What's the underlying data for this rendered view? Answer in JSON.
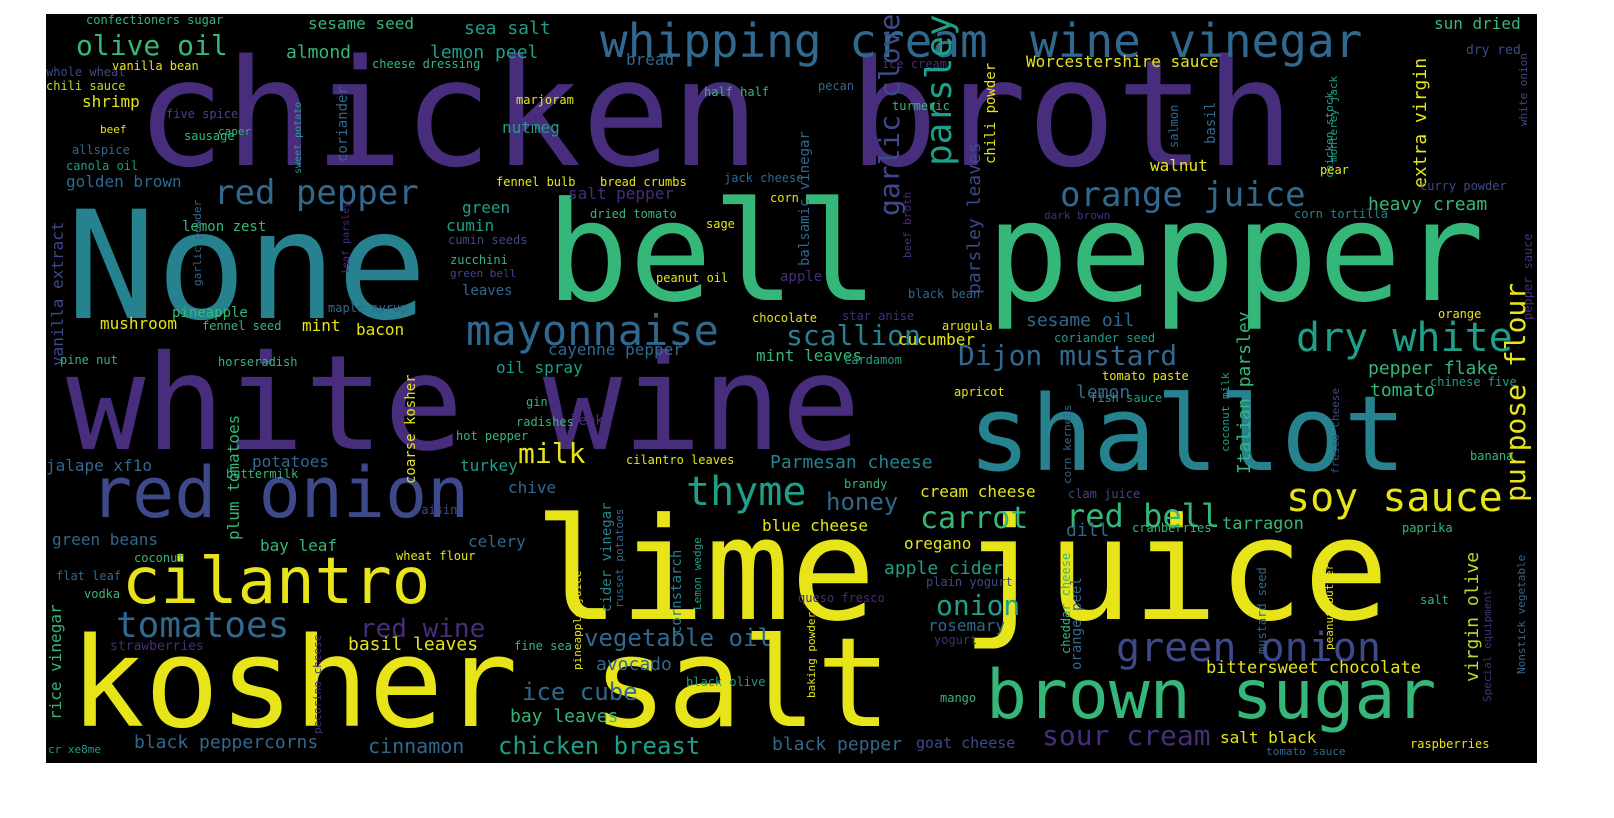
{
  "palette": {
    "yellow": "#e7e419",
    "lime": "#b5de2b",
    "green": "#35b779",
    "teal": "#1f9e89",
    "cyan": "#26828e",
    "blue": "#31688e",
    "indigo": "#3e4989",
    "purple": "#472d7b",
    "dark": "#440154"
  },
  "words": [
    {
      "text": "chicken broth",
      "color": "purple"
    },
    {
      "text": "None",
      "color": "cyan"
    },
    {
      "text": "bell",
      "color": "green"
    },
    {
      "text": "pepper",
      "color": "green"
    },
    {
      "text": "white wine",
      "color": "purple"
    },
    {
      "text": "shallot",
      "color": "cyan"
    },
    {
      "text": "lime juice",
      "color": "yellow"
    },
    {
      "text": "kosher salt",
      "color": "yellow"
    },
    {
      "text": "red onion",
      "color": "indigo"
    },
    {
      "text": "brown sugar",
      "color": "green"
    },
    {
      "text": "cilantro",
      "color": "yellow"
    },
    {
      "text": "whipping cream",
      "color": "blue"
    },
    {
      "text": "wine vinegar",
      "color": "blue"
    },
    {
      "text": "mayonnaise",
      "color": "blue"
    },
    {
      "text": "soy sauce",
      "color": "yellow"
    },
    {
      "text": "dry white",
      "color": "teal"
    },
    {
      "text": "green onion",
      "color": "indigo"
    },
    {
      "text": "thyme",
      "color": "teal"
    },
    {
      "text": "tomatoes",
      "color": "blue"
    },
    {
      "text": "orange juice",
      "color": "blue"
    },
    {
      "text": "red pepper",
      "color": "blue"
    },
    {
      "text": "olive oil",
      "color": "green"
    },
    {
      "text": "red bell",
      "color": "green"
    },
    {
      "text": "carrot",
      "color": "green"
    },
    {
      "text": "Dijon mustard",
      "color": "blue"
    },
    {
      "text": "scallion",
      "color": "cyan"
    },
    {
      "text": "parsley",
      "color": "teal"
    },
    {
      "text": "garlic clove",
      "color": "indigo"
    },
    {
      "text": "purpose flour",
      "color": "yellow"
    },
    {
      "text": "sour cream",
      "color": "purple"
    },
    {
      "text": "red wine",
      "color": "purple"
    },
    {
      "text": "vegetable oil",
      "color": "blue"
    },
    {
      "text": "honey",
      "color": "blue"
    },
    {
      "text": "milk",
      "color": "yellow"
    },
    {
      "text": "onion",
      "color": "teal"
    },
    {
      "text": "ice cube",
      "color": "blue"
    },
    {
      "text": "chicken breast",
      "color": "teal"
    },
    {
      "text": "cinnamon",
      "color": "blue"
    },
    {
      "text": "black peppercorns",
      "color": "blue"
    },
    {
      "text": "bay leaves",
      "color": "green"
    },
    {
      "text": "avocado",
      "color": "blue"
    },
    {
      "text": "basil leaves",
      "color": "yellow"
    },
    {
      "text": "Parmesan cheese",
      "color": "cyan"
    },
    {
      "text": "cream cheese",
      "color": "yellow"
    },
    {
      "text": "blue cheese",
      "color": "yellow"
    },
    {
      "text": "oregano",
      "color": "yellow"
    },
    {
      "text": "apple cider",
      "color": "teal"
    },
    {
      "text": "rosemary",
      "color": "blue"
    },
    {
      "text": "bittersweet chocolate",
      "color": "yellow"
    },
    {
      "text": "salt black",
      "color": "yellow"
    },
    {
      "text": "black pepper",
      "color": "blue"
    },
    {
      "text": "goat cheese",
      "color": "indigo"
    },
    {
      "text": "tarragon",
      "color": "green"
    },
    {
      "text": "dill",
      "color": "blue"
    },
    {
      "text": "virgin olive",
      "color": "lime"
    },
    {
      "text": "heavy cream",
      "color": "green"
    },
    {
      "text": "extra virgin",
      "color": "yellow"
    },
    {
      "text": "sesame oil",
      "color": "blue"
    },
    {
      "text": "cucumber",
      "color": "yellow"
    },
    {
      "text": "pepper flake",
      "color": "green"
    },
    {
      "text": "tomato",
      "color": "green"
    },
    {
      "text": "lemon",
      "color": "blue"
    },
    {
      "text": "Italian parsley",
      "color": "green"
    },
    {
      "text": "parsley leaves",
      "color": "indigo"
    },
    {
      "text": "chili powder",
      "color": "yellow"
    },
    {
      "text": "Worcestershire sauce",
      "color": "yellow"
    },
    {
      "text": "walnut",
      "color": "yellow"
    },
    {
      "text": "sun dried",
      "color": "green"
    },
    {
      "text": "dry red",
      "color": "indigo"
    },
    {
      "text": "lemon peel",
      "color": "teal"
    },
    {
      "text": "sea salt",
      "color": "teal"
    },
    {
      "text": "sesame seed",
      "color": "green"
    },
    {
      "text": "almond",
      "color": "green"
    },
    {
      "text": "nutmeg",
      "color": "teal"
    },
    {
      "text": "bread",
      "color": "blue"
    },
    {
      "text": "shrimp",
      "color": "yellow"
    },
    {
      "text": "golden brown",
      "color": "blue"
    },
    {
      "text": "lemon zest",
      "color": "green"
    },
    {
      "text": "green",
      "color": "teal"
    },
    {
      "text": "cumin",
      "color": "teal"
    },
    {
      "text": "leaves",
      "color": "blue"
    },
    {
      "text": "mushroom",
      "color": "yellow"
    },
    {
      "text": "pineapple",
      "color": "green"
    },
    {
      "text": "mint",
      "color": "yellow"
    },
    {
      "text": "bacon",
      "color": "yellow"
    },
    {
      "text": "cayenne pepper",
      "color": "blue"
    },
    {
      "text": "mint leaves",
      "color": "green"
    },
    {
      "text": "oil spray",
      "color": "teal"
    },
    {
      "text": "jalape xf1o",
      "color": "blue"
    },
    {
      "text": "potatoes",
      "color": "blue"
    },
    {
      "text": "plum tomatoes",
      "color": "green"
    },
    {
      "text": "coarse kosher",
      "color": "yellow"
    },
    {
      "text": "turkey",
      "color": "teal"
    },
    {
      "text": "chive",
      "color": "blue"
    },
    {
      "text": "green beans",
      "color": "blue"
    },
    {
      "text": "bay leaf",
      "color": "green"
    },
    {
      "text": "celery",
      "color": "blue"
    },
    {
      "text": "rice vinegar",
      "color": "green"
    },
    {
      "text": "vanilla extract",
      "color": "indigo"
    },
    {
      "text": "salt pepper",
      "color": "purple"
    },
    {
      "text": "balsamic vinegar",
      "color": "blue"
    },
    {
      "text": "cider vinegar",
      "color": "cyan"
    },
    {
      "text": "cornstarch",
      "color": "cyan"
    },
    {
      "text": "apple",
      "color": "purple"
    },
    {
      "text": "leek",
      "color": "purple"
    },
    {
      "text": "strawberries",
      "color": "purple"
    },
    {
      "text": "confectioners sugar",
      "color": "green"
    },
    {
      "text": "whole wheat",
      "color": "indigo"
    },
    {
      "text": "vanilla bean",
      "color": "yellow"
    },
    {
      "text": "chili sauce",
      "color": "lime"
    },
    {
      "text": "five spice",
      "color": "indigo"
    },
    {
      "text": "beef",
      "color": "yellow"
    },
    {
      "text": "sausage",
      "color": "green"
    },
    {
      "text": "allspice",
      "color": "blue"
    },
    {
      "text": "canola oil",
      "color": "teal"
    },
    {
      "text": "cheese dressing",
      "color": "green"
    },
    {
      "text": "half half",
      "color": "green"
    },
    {
      "text": "pecan",
      "color": "blue"
    },
    {
      "text": "ice cream",
      "color": "purple"
    },
    {
      "text": "turmeric",
      "color": "green"
    },
    {
      "text": "marjoram",
      "color": "yellow"
    },
    {
      "text": "caper",
      "color": "green"
    },
    {
      "text": "coriander",
      "color": "blue"
    },
    {
      "text": "sweet potato",
      "color": "teal"
    },
    {
      "text": "chicken stock",
      "color": "teal"
    },
    {
      "text": "salmon",
      "color": "blue"
    },
    {
      "text": "basil",
      "color": "blue"
    },
    {
      "text": "monterey jack",
      "color": "teal"
    },
    {
      "text": "pear",
      "color": "yellow"
    },
    {
      "text": "white onion",
      "color": "indigo"
    },
    {
      "text": "curry powder",
      "color": "indigo"
    },
    {
      "text": "corn tortilla",
      "color": "cyan"
    },
    {
      "text": "dark brown",
      "color": "purple"
    },
    {
      "text": "fennel bulb",
      "color": "yellow"
    },
    {
      "text": "bread crumbs",
      "color": "yellow"
    },
    {
      "text": "jack cheese",
      "color": "blue"
    },
    {
      "text": "corn",
      "color": "yellow"
    },
    {
      "text": "dried tomato",
      "color": "green"
    },
    {
      "text": "sage",
      "color": "yellow"
    },
    {
      "text": "cumin seeds",
      "color": "indigo"
    },
    {
      "text": "zucchini",
      "color": "green"
    },
    {
      "text": "green bell",
      "color": "indigo"
    },
    {
      "text": "garlic powder",
      "color": "blue"
    },
    {
      "text": "leaf parsley",
      "color": "purple"
    },
    {
      "text": "maple syrup",
      "color": "blue"
    },
    {
      "text": "fennel seed",
      "color": "green"
    },
    {
      "text": "pine nut",
      "color": "green"
    },
    {
      "text": "horseradish",
      "color": "green"
    },
    {
      "text": "peanut oil",
      "color": "yellow"
    },
    {
      "text": "beef broth",
      "color": "purple"
    },
    {
      "text": "black bean",
      "color": "blue"
    },
    {
      "text": "star anise",
      "color": "purple"
    },
    {
      "text": "chocolate",
      "color": "yellow"
    },
    {
      "text": "arugula",
      "color": "yellow"
    },
    {
      "text": "coriander seed",
      "color": "teal"
    },
    {
      "text": "cardamom",
      "color": "teal"
    },
    {
      "text": "orange",
      "color": "yellow"
    },
    {
      "text": "pepper sauce",
      "color": "purple"
    },
    {
      "text": "tomato paste",
      "color": "yellow"
    },
    {
      "text": "chinese five",
      "color": "teal"
    },
    {
      "text": "apricot",
      "color": "yellow"
    },
    {
      "text": "fish sauce",
      "color": "teal"
    },
    {
      "text": "coconut milk",
      "color": "teal"
    },
    {
      "text": "fresco cheese",
      "color": "indigo"
    },
    {
      "text": "corn kernels",
      "color": "blue"
    },
    {
      "text": "gin",
      "color": "green"
    },
    {
      "text": "radishes",
      "color": "green"
    },
    {
      "text": "hot pepper",
      "color": "green"
    },
    {
      "text": "cilantro leaves",
      "color": "yellow"
    },
    {
      "text": "brandy",
      "color": "green"
    },
    {
      "text": "buttermilk",
      "color": "green"
    },
    {
      "text": "raisin",
      "color": "indigo"
    },
    {
      "text": "wheat flour",
      "color": "yellow"
    },
    {
      "text": "coconut",
      "color": "green"
    },
    {
      "text": "flat leaf",
      "color": "blue"
    },
    {
      "text": "vodka",
      "color": "green"
    },
    {
      "text": "pineapple juice",
      "color": "yellow"
    },
    {
      "text": "russet potatoes",
      "color": "blue"
    },
    {
      "text": "Lemon wedge",
      "color": "teal"
    },
    {
      "text": "queso fresco",
      "color": "purple"
    },
    {
      "text": "plain yogurt",
      "color": "indigo"
    },
    {
      "text": "yogurt",
      "color": "purple"
    },
    {
      "text": "fine sea",
      "color": "green"
    },
    {
      "text": "baking powder",
      "color": "yellow"
    },
    {
      "text": "black olive",
      "color": "teal"
    },
    {
      "text": "mango",
      "color": "green"
    },
    {
      "text": "pecorino cheese",
      "color": "purple"
    },
    {
      "text": "cr xe8me",
      "color": "teal"
    },
    {
      "text": "clam juice",
      "color": "indigo"
    },
    {
      "text": "cranberries",
      "color": "green"
    },
    {
      "text": "paprika",
      "color": "green"
    },
    {
      "text": "peanut butter",
      "color": "yellow"
    },
    {
      "text": "banana",
      "color": "green"
    },
    {
      "text": "salt",
      "color": "green"
    },
    {
      "text": "mustard seed",
      "color": "blue"
    },
    {
      "text": "Special equipment",
      "color": "purple"
    },
    {
      "text": "Nonstick vegetable",
      "color": "blue"
    },
    {
      "text": "raspberries",
      "color": "yellow"
    },
    {
      "text": "tomato sauce",
      "color": "blue"
    },
    {
      "text": "orange peel",
      "color": "blue"
    },
    {
      "text": "cheddar cheese",
      "color": "green"
    }
  ]
}
